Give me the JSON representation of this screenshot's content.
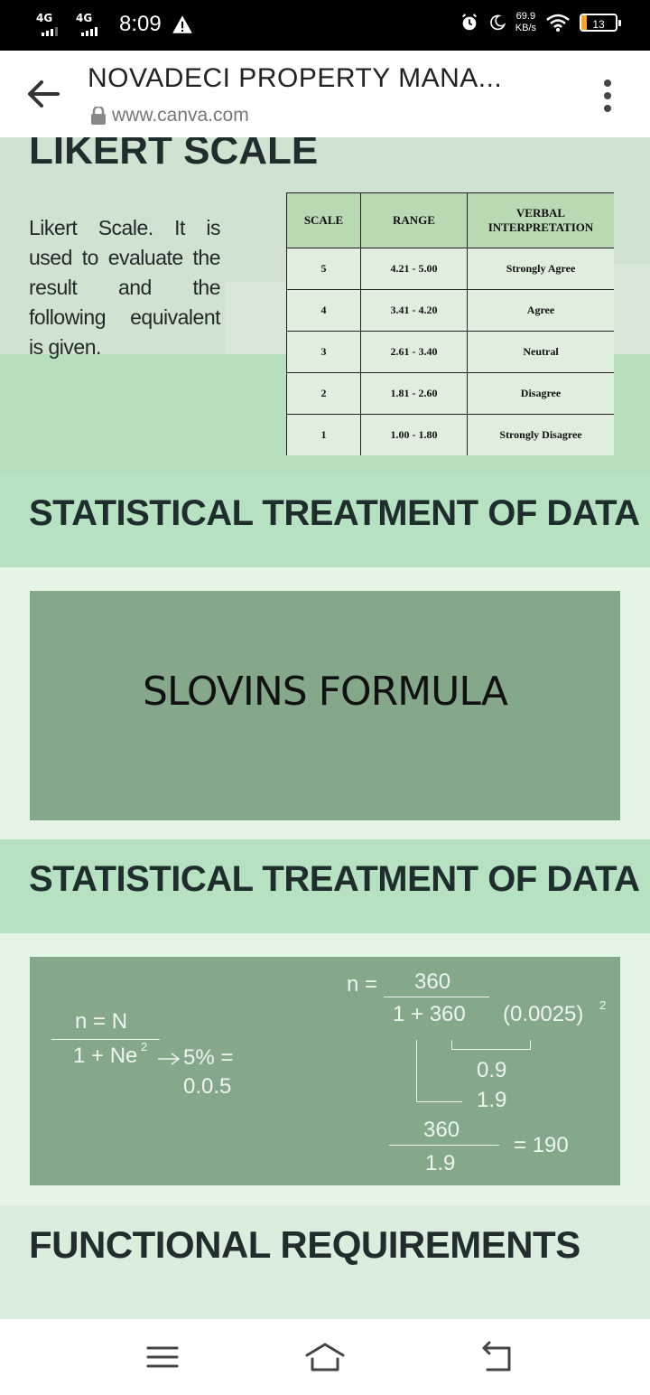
{
  "status_bar": {
    "signal1": "4G",
    "signal2": "4G",
    "time": "8:09",
    "net_speed_value": "69.9",
    "net_speed_unit": "KB/s",
    "battery": "13"
  },
  "browser": {
    "title": "NOVADECI PROPERTY MANA...",
    "url": "www.canva.com"
  },
  "likert": {
    "heading": "LIKERT SCALE",
    "description": "Likert Scale. It is used to evaluate the result and the following equivalent is given.",
    "table": {
      "headers": [
        "SCALE",
        "RANGE",
        "VERBAL INTERPRETATION"
      ],
      "rows": [
        [
          "5",
          "4.21 - 5.00",
          "Strongly Agree"
        ],
        [
          "4",
          "3.41 - 4.20",
          "Agree"
        ],
        [
          "3",
          "2.61 - 3.40",
          "Neutral"
        ],
        [
          "2",
          "1.81 - 2.60",
          "Disagree"
        ],
        [
          "1",
          "1.00 - 1.80",
          "Strongly Disagree"
        ]
      ]
    }
  },
  "section1": {
    "title": "STATISTICAL TREATMENT OF DATA"
  },
  "slovins": {
    "title": "SLOVINS FORMULA"
  },
  "section2": {
    "title": "STATISTICAL TREATMENT OF DATA"
  },
  "formula": {
    "left_numer": "n =  N",
    "left_denom": "1 + Ne",
    "left_exp": "2",
    "arrow_text": "5% =",
    "left_value": "0.0.5",
    "right_n": "n =",
    "right_numer": "360",
    "right_denom": "1 + 360",
    "right_paren": "(0.0025)",
    "right_exp": "2",
    "step1": "0.9",
    "step2": "1.9",
    "final_numer": "360",
    "final_denom": "1.9",
    "result": "=  190"
  },
  "section3": {
    "title": "FUNCTIONAL REQUIREMENTS"
  }
}
